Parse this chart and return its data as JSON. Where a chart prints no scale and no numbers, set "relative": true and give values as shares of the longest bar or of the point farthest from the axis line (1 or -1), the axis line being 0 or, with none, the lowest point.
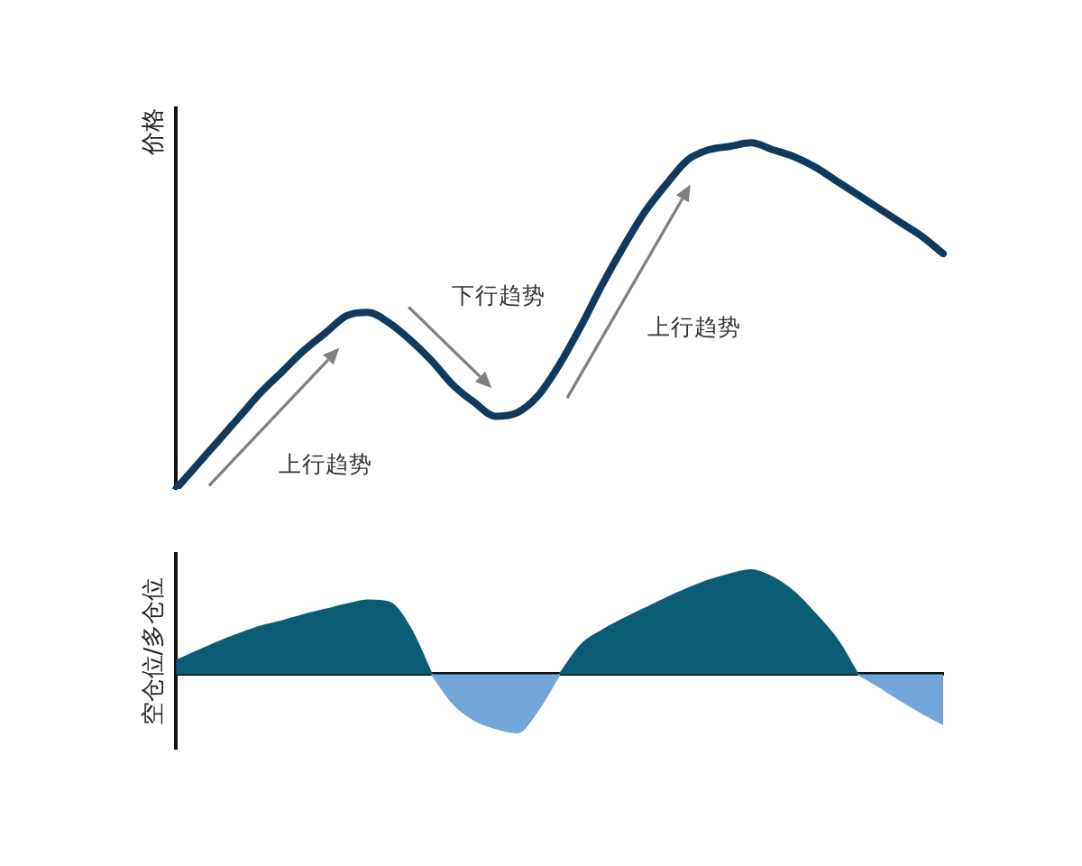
{
  "chart_data": [
    {
      "type": "line",
      "ylabel": "价格",
      "relative": true,
      "categories": [
        null,
        null,
        null,
        null,
        null,
        null,
        null,
        null,
        null,
        null,
        null,
        null,
        null,
        null,
        null,
        null,
        null,
        null,
        null,
        null,
        null,
        null,
        null,
        null,
        null,
        null,
        null,
        null,
        null,
        null,
        null,
        null,
        null,
        null,
        null,
        null,
        null
      ],
      "series": [
        {
          "color": "#0f3a5e",
          "values": [
            0.0,
            0.07,
            0.14,
            0.21,
            0.28,
            0.34,
            0.4,
            0.45,
            0.5,
            0.51,
            0.48,
            0.43,
            0.37,
            0.3,
            0.25,
            0.21,
            0.22,
            0.27,
            0.36,
            0.47,
            0.59,
            0.7,
            0.8,
            0.88,
            0.95,
            0.98,
            0.99,
            1.0,
            0.98,
            0.96,
            0.93,
            0.89,
            0.85,
            0.81,
            0.77,
            0.73,
            0.68
          ]
        }
      ],
      "annotations": [
        "上行趋势",
        "下行趋势",
        "上行趋势"
      ]
    },
    {
      "type": "area",
      "ylabel": "空仓位/多仓位",
      "relative": true,
      "categories": [
        null,
        null,
        null,
        null,
        null,
        null,
        null,
        null,
        null,
        null,
        null,
        null,
        null,
        null,
        null,
        null,
        null,
        null,
        null,
        null,
        null,
        null,
        null,
        null,
        null,
        null,
        null,
        null,
        null,
        null,
        null,
        null,
        null,
        null,
        null,
        null,
        null
      ],
      "series": [
        {
          "color": "#0b5d75",
          "values": [
            0.13,
            0.22,
            0.31,
            0.39,
            0.46,
            0.51,
            0.57,
            0.62,
            0.67,
            0.71,
            0.69,
            0.44,
            0,
            null,
            null,
            null,
            null,
            null,
            0,
            0.28,
            0.42,
            0.53,
            0.63,
            0.73,
            0.82,
            0.9,
            0.96,
            1.0,
            0.93,
            0.79,
            0.58,
            0.34,
            0,
            null,
            null,
            null,
            null
          ]
        },
        {
          "color": "#72a6d8",
          "values": [
            null,
            null,
            null,
            null,
            null,
            null,
            null,
            null,
            null,
            null,
            null,
            null,
            0,
            -0.28,
            -0.44,
            -0.52,
            -0.56,
            -0.34,
            0,
            null,
            null,
            null,
            null,
            null,
            null,
            null,
            null,
            null,
            null,
            null,
            null,
            null,
            0,
            -0.12,
            -0.25,
            -0.37,
            -0.48
          ]
        }
      ]
    }
  ]
}
